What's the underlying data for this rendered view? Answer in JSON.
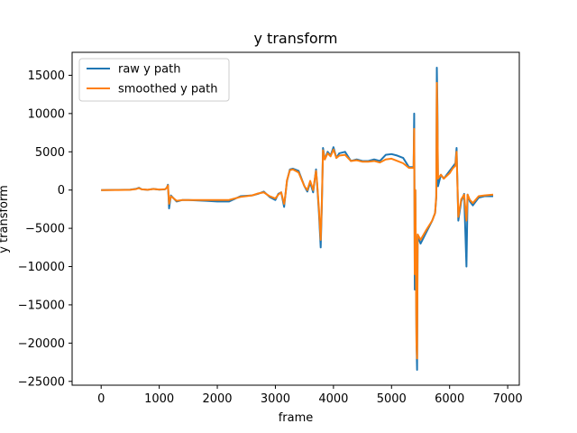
{
  "chart_data": {
    "type": "line",
    "title": "y transform",
    "xlabel": "frame",
    "ylabel": "y transform",
    "xlim": [
      -500,
      7200
    ],
    "ylim": [
      -25500,
      18000
    ],
    "xticks": [
      0,
      1000,
      2000,
      3000,
      4000,
      5000,
      6000,
      7000
    ],
    "yticks": [
      -25000,
      -20000,
      -15000,
      -10000,
      -5000,
      0,
      5000,
      10000,
      15000
    ],
    "legend_position": "upper-left",
    "grid": false,
    "series": [
      {
        "name": "raw y path",
        "color": "#1f77b4",
        "points": [
          [
            0,
            0
          ],
          [
            300,
            20
          ],
          [
            500,
            50
          ],
          [
            600,
            150
          ],
          [
            650,
            300
          ],
          [
            700,
            100
          ],
          [
            800,
            30
          ],
          [
            900,
            150
          ],
          [
            1000,
            50
          ],
          [
            1100,
            100
          ],
          [
            1130,
            300
          ],
          [
            1150,
            700
          ],
          [
            1170,
            -2400
          ],
          [
            1200,
            -700
          ],
          [
            1300,
            -1500
          ],
          [
            1400,
            -1300
          ],
          [
            1500,
            -1300
          ],
          [
            1800,
            -1400
          ],
          [
            2000,
            -1500
          ],
          [
            2200,
            -1500
          ],
          [
            2400,
            -800
          ],
          [
            2600,
            -700
          ],
          [
            2700,
            -500
          ],
          [
            2800,
            -200
          ],
          [
            2900,
            -900
          ],
          [
            3000,
            -1300
          ],
          [
            3050,
            -500
          ],
          [
            3100,
            -300
          ],
          [
            3150,
            -2200
          ],
          [
            3170,
            -800
          ],
          [
            3200,
            1200
          ],
          [
            3250,
            2700
          ],
          [
            3300,
            2800
          ],
          [
            3400,
            2500
          ],
          [
            3500,
            500
          ],
          [
            3550,
            -200
          ],
          [
            3600,
            1000
          ],
          [
            3650,
            -300
          ],
          [
            3700,
            2700
          ],
          [
            3720,
            600
          ],
          [
            3750,
            -3000
          ],
          [
            3780,
            -7500
          ],
          [
            3800,
            -2000
          ],
          [
            3820,
            5500
          ],
          [
            3850,
            4000
          ],
          [
            3900,
            5000
          ],
          [
            3950,
            4500
          ],
          [
            4000,
            5600
          ],
          [
            4050,
            4200
          ],
          [
            4100,
            4800
          ],
          [
            4200,
            5000
          ],
          [
            4300,
            3800
          ],
          [
            4400,
            4000
          ],
          [
            4500,
            3800
          ],
          [
            4600,
            3800
          ],
          [
            4700,
            4000
          ],
          [
            4800,
            3800
          ],
          [
            4900,
            4600
          ],
          [
            5000,
            4700
          ],
          [
            5100,
            4500
          ],
          [
            5200,
            4200
          ],
          [
            5300,
            3000
          ],
          [
            5380,
            3000
          ],
          [
            5390,
            10000
          ],
          [
            5400,
            -13000
          ],
          [
            5410,
            0
          ],
          [
            5430,
            -20000
          ],
          [
            5440,
            -23500
          ],
          [
            5450,
            -6000
          ],
          [
            5500,
            -7000
          ],
          [
            5600,
            -5500
          ],
          [
            5700,
            -4000
          ],
          [
            5750,
            -3000
          ],
          [
            5770,
            -1000
          ],
          [
            5780,
            16000
          ],
          [
            5790,
            11000
          ],
          [
            5800,
            500
          ],
          [
            5850,
            2000
          ],
          [
            5900,
            1500
          ],
          [
            6000,
            2500
          ],
          [
            6050,
            3000
          ],
          [
            6100,
            3500
          ],
          [
            6120,
            5500
          ],
          [
            6150,
            -4000
          ],
          [
            6200,
            -1500
          ],
          [
            6250,
            -500
          ],
          [
            6290,
            -10000
          ],
          [
            6310,
            -600
          ],
          [
            6350,
            -1500
          ],
          [
            6400,
            -2000
          ],
          [
            6500,
            -1000
          ],
          [
            6600,
            -800
          ],
          [
            6750,
            -800
          ]
        ]
      },
      {
        "name": "smoothed y path",
        "color": "#ff7f0e",
        "points": [
          [
            0,
            0
          ],
          [
            300,
            10
          ],
          [
            500,
            40
          ],
          [
            600,
            130
          ],
          [
            650,
            250
          ],
          [
            700,
            90
          ],
          [
            800,
            40
          ],
          [
            900,
            140
          ],
          [
            1000,
            60
          ],
          [
            1100,
            110
          ],
          [
            1130,
            300
          ],
          [
            1150,
            600
          ],
          [
            1170,
            -1800
          ],
          [
            1200,
            -800
          ],
          [
            1300,
            -1400
          ],
          [
            1400,
            -1300
          ],
          [
            1500,
            -1300
          ],
          [
            1800,
            -1300
          ],
          [
            2000,
            -1300
          ],
          [
            2200,
            -1300
          ],
          [
            2400,
            -900
          ],
          [
            2600,
            -700
          ],
          [
            2700,
            -450
          ],
          [
            2800,
            -300
          ],
          [
            2900,
            -800
          ],
          [
            3000,
            -1100
          ],
          [
            3050,
            -600
          ],
          [
            3100,
            -300
          ],
          [
            3150,
            -1800
          ],
          [
            3170,
            -800
          ],
          [
            3200,
            1300
          ],
          [
            3250,
            2600
          ],
          [
            3300,
            2700
          ],
          [
            3400,
            2300
          ],
          [
            3500,
            500
          ],
          [
            3550,
            0
          ],
          [
            3600,
            1200
          ],
          [
            3650,
            0
          ],
          [
            3700,
            2500
          ],
          [
            3720,
            800
          ],
          [
            3750,
            -2500
          ],
          [
            3780,
            -6500
          ],
          [
            3800,
            -1500
          ],
          [
            3820,
            5200
          ],
          [
            3850,
            4000
          ],
          [
            3900,
            4800
          ],
          [
            3950,
            4400
          ],
          [
            4000,
            5300
          ],
          [
            4050,
            4200
          ],
          [
            4100,
            4500
          ],
          [
            4200,
            4600
          ],
          [
            4300,
            3800
          ],
          [
            4400,
            3900
          ],
          [
            4500,
            3700
          ],
          [
            4600,
            3700
          ],
          [
            4700,
            3800
          ],
          [
            4800,
            3600
          ],
          [
            4900,
            4000
          ],
          [
            5000,
            4100
          ],
          [
            5100,
            3800
          ],
          [
            5200,
            3500
          ],
          [
            5300,
            2900
          ],
          [
            5380,
            2900
          ],
          [
            5390,
            8000
          ],
          [
            5400,
            -11000
          ],
          [
            5410,
            0
          ],
          [
            5430,
            -20000
          ],
          [
            5440,
            -22000
          ],
          [
            5450,
            -5800
          ],
          [
            5500,
            -6500
          ],
          [
            5600,
            -5200
          ],
          [
            5700,
            -4000
          ],
          [
            5750,
            -3000
          ],
          [
            5770,
            -800
          ],
          [
            5780,
            14000
          ],
          [
            5790,
            9000
          ],
          [
            5800,
            1500
          ],
          [
            5850,
            2000
          ],
          [
            5900,
            1500
          ],
          [
            6000,
            2200
          ],
          [
            6050,
            2800
          ],
          [
            6100,
            3200
          ],
          [
            6120,
            5000
          ],
          [
            6150,
            -3500
          ],
          [
            6200,
            -1200
          ],
          [
            6250,
            -600
          ],
          [
            6290,
            -4000
          ],
          [
            6310,
            -600
          ],
          [
            6350,
            -1300
          ],
          [
            6400,
            -1700
          ],
          [
            6500,
            -800
          ],
          [
            6600,
            -700
          ],
          [
            6750,
            -600
          ]
        ]
      }
    ]
  }
}
